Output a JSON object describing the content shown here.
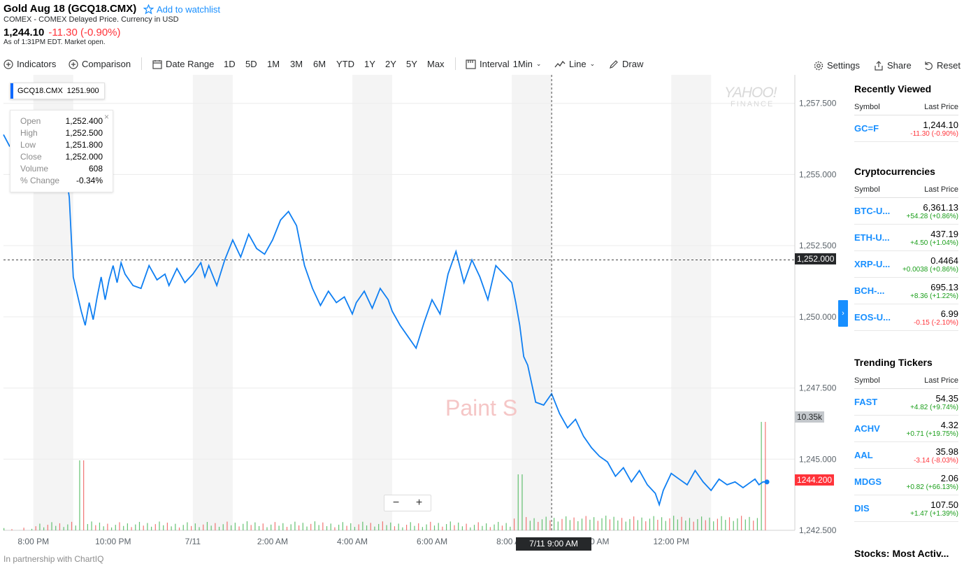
{
  "header": {
    "title": "Gold Aug 18 (GCQ18.CMX)",
    "watchlist_label": "Add to watchlist",
    "subtitle": "COMEX - COMEX Delayed Price. Currency in USD",
    "price": "1,244.10",
    "change": "-11.30 (-0.90%)",
    "as_of": "As of 1:31PM EDT. Market open."
  },
  "toolbar": {
    "indicators": "Indicators",
    "comparison": "Comparison",
    "date_range": "Date Range",
    "ranges": [
      "1D",
      "5D",
      "1M",
      "3M",
      "6M",
      "YTD",
      "1Y",
      "2Y",
      "5Y",
      "Max"
    ],
    "interval_label": "Interval",
    "interval_value": "1Min",
    "chart_type": "Line",
    "draw": "Draw",
    "settings": "Settings",
    "share": "Share",
    "reset": "Reset"
  },
  "chart_overlay": {
    "symbol": "GCQ18.CMX",
    "symbol_value": "1251.900",
    "ohlc": [
      {
        "k": "Open",
        "v": "1,252.400"
      },
      {
        "k": "High",
        "v": "1,252.500"
      },
      {
        "k": "Low",
        "v": "1,251.800"
      },
      {
        "k": "Close",
        "v": "1,252.000"
      },
      {
        "k": "Volume",
        "v": "608"
      },
      {
        "k": "% Change",
        "v": "-0.34%"
      }
    ],
    "crosshair_price": "1,252.000",
    "volume_tag": "10.35k",
    "last_price_tag": "1244.200",
    "crosshair_date": "7/11 9:00 AM",
    "zoom_out": "−",
    "zoom_in": "+",
    "watermark_brand": "YAHOO!",
    "watermark_sub": "FINANCE",
    "watermark_paint": "Paint S",
    "partner": "In partnership with ChartIQ",
    "colors": {
      "line": "#0f7ff2",
      "up_volume": "#3fb34f",
      "down_volume": "#ef5350",
      "shade": "#f4f4f4"
    }
  },
  "chart_data": {
    "type": "line",
    "title": "Gold Aug 18 (GCQ18.CMX)",
    "ylim": [
      1242.5,
      1258.5
    ],
    "y_ticks": [
      "1,257.500",
      "1,255.000",
      "1,252.500",
      "1,250.000",
      "1,247.500",
      "1,245.000",
      "1,242.500"
    ],
    "y_tick_values": [
      1257.5,
      1255.0,
      1252.5,
      1250.0,
      1247.5,
      1245.0,
      1242.5
    ],
    "x_ticks": [
      "8:00 PM",
      "10:00 PM",
      "7/11",
      "2:00 AM",
      "4:00 AM",
      "6:00 AM",
      "8:00 AM",
      "10:00 AM",
      "12:00 PM"
    ],
    "x_tick_hours": [
      0,
      2,
      4,
      6,
      8,
      10,
      12,
      14,
      16
    ],
    "x_start_hour": -0.75,
    "x_end_hour": 19.1,
    "series": [
      {
        "name": "GCQ18.CMX",
        "x_hours": [
          -0.75,
          -0.6,
          -0.4,
          -0.25,
          0,
          0.3,
          0.6,
          0.8,
          0.9,
          1.0,
          1.1,
          1.2,
          1.3,
          1.4,
          1.5,
          1.6,
          1.7,
          1.8,
          1.9,
          2.0,
          2.1,
          2.2,
          2.3,
          2.4,
          2.5,
          2.7,
          2.9,
          3.1,
          3.3,
          3.4,
          3.5,
          3.6,
          3.8,
          4.0,
          4.2,
          4.3,
          4.4,
          4.6,
          4.8,
          5.0,
          5.2,
          5.4,
          5.6,
          5.8,
          6.0,
          6.2,
          6.4,
          6.6,
          6.8,
          7.0,
          7.2,
          7.4,
          7.6,
          7.8,
          8.0,
          8.1,
          8.3,
          8.5,
          8.7,
          8.9,
          9.0,
          9.2,
          9.4,
          9.6,
          9.8,
          10.0,
          10.2,
          10.4,
          10.6,
          10.8,
          11.0,
          11.2,
          11.4,
          11.6,
          11.8,
          12.0,
          12.1,
          12.2,
          12.3,
          12.4,
          12.6,
          12.8,
          13.0,
          13.2,
          13.4,
          13.6,
          13.8,
          14.0,
          14.2,
          14.4,
          14.6,
          14.8,
          15.0,
          15.2,
          15.4,
          15.6,
          15.7,
          15.8,
          16.0,
          16.2,
          16.4,
          16.6,
          16.8,
          17.0,
          17.2,
          17.4,
          17.6,
          17.8,
          18.0,
          18.1,
          18.2,
          18.3,
          18.4
        ],
        "values": [
          1256.4,
          1256.0,
          1256.3,
          1255.6,
          1255.9,
          1255.5,
          1255.9,
          1255.2,
          1254.2,
          1251.4,
          1250.8,
          1250.2,
          1249.7,
          1250.5,
          1249.9,
          1250.7,
          1251.4,
          1250.6,
          1251.3,
          1251.8,
          1251.2,
          1251.9,
          1251.5,
          1251.3,
          1251.1,
          1251.0,
          1251.8,
          1251.3,
          1251.5,
          1251.1,
          1251.4,
          1251.7,
          1251.2,
          1251.5,
          1251.9,
          1251.4,
          1251.8,
          1251.1,
          1252.0,
          1252.7,
          1252.1,
          1252.9,
          1252.4,
          1252.2,
          1252.7,
          1253.4,
          1253.7,
          1253.2,
          1251.8,
          1251.0,
          1250.4,
          1250.9,
          1250.5,
          1250.7,
          1250.1,
          1250.5,
          1250.9,
          1250.3,
          1251.0,
          1250.6,
          1250.2,
          1249.7,
          1249.3,
          1248.9,
          1249.8,
          1250.6,
          1250.1,
          1251.5,
          1252.3,
          1251.2,
          1252.0,
          1251.4,
          1250.6,
          1251.8,
          1251.5,
          1251.2,
          1250.5,
          1249.7,
          1248.6,
          1248.3,
          1247.0,
          1246.9,
          1247.3,
          1246.6,
          1246.1,
          1246.4,
          1245.8,
          1245.4,
          1245.1,
          1244.9,
          1244.4,
          1244.7,
          1244.2,
          1244.6,
          1244.1,
          1243.8,
          1243.4,
          1243.9,
          1244.5,
          1244.3,
          1244.1,
          1244.6,
          1244.2,
          1243.9,
          1244.3,
          1244.1,
          1244.2,
          1244.0,
          1244.2,
          1244.3,
          1244.1,
          1244.2,
          1244.2
        ]
      }
    ],
    "grid": true,
    "legend": "none"
  },
  "panel": {
    "sections": [
      {
        "title": "Recently Viewed",
        "col_symbol": "Symbol",
        "col_last": "Last Price",
        "rows": [
          {
            "sym": "GC=F",
            "last": "1,244.10",
            "chg": "-11.30 (-0.90%)",
            "dir": "dn"
          }
        ]
      },
      {
        "title": "Cryptocurrencies",
        "col_symbol": "Symbol",
        "col_last": "Last Price",
        "rows": [
          {
            "sym": "BTC-U...",
            "last": "6,361.13",
            "chg": "+54.28 (+0.86%)",
            "dir": "up"
          },
          {
            "sym": "ETH-U...",
            "last": "437.19",
            "chg": "+4.50 (+1.04%)",
            "dir": "up"
          },
          {
            "sym": "XRP-U...",
            "last": "0.4464",
            "chg": "+0.0038 (+0.86%)",
            "dir": "up"
          },
          {
            "sym": "BCH-...",
            "last": "695.13",
            "chg": "+8.36 (+1.22%)",
            "dir": "up"
          },
          {
            "sym": "EOS-U...",
            "last": "6.99",
            "chg": "-0.15 (-2.10%)",
            "dir": "dn"
          }
        ]
      },
      {
        "title": "Trending Tickers",
        "col_symbol": "Symbol",
        "col_last": "Last Price",
        "rows": [
          {
            "sym": "FAST",
            "last": "54.35",
            "chg": "+4.82 (+9.74%)",
            "dir": "up"
          },
          {
            "sym": "ACHV",
            "last": "4.32",
            "chg": "+0.71 (+19.75%)",
            "dir": "up"
          },
          {
            "sym": "AAL",
            "last": "35.98",
            "chg": "-3.14 (-8.03%)",
            "dir": "dn"
          },
          {
            "sym": "MDGS",
            "last": "2.06",
            "chg": "+0.82 (+66.13%)",
            "dir": "up"
          },
          {
            "sym": "DIS",
            "last": "107.50",
            "chg": "+1.47 (+1.39%)",
            "dir": "up"
          }
        ]
      }
    ],
    "last_title": "Stocks: Most Activ..."
  }
}
